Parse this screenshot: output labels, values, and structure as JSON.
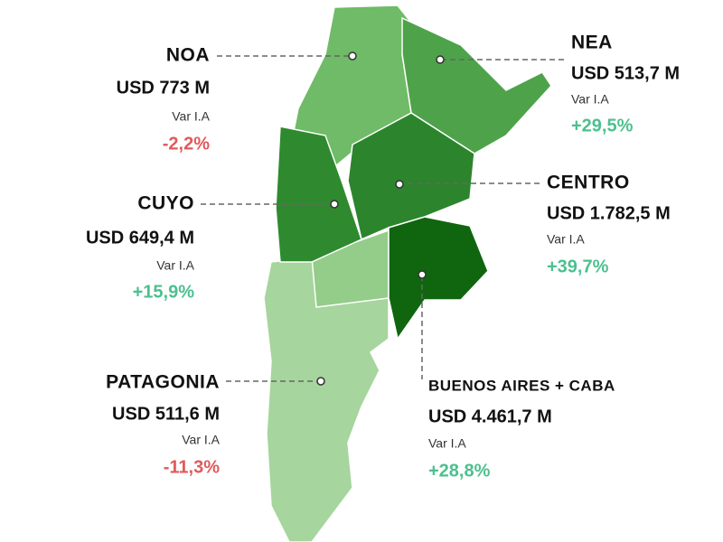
{
  "regions": [
    {
      "name": "NOA",
      "amount": "USD 773 M",
      "var_label": "Var I.A",
      "change": "-2,2%"
    },
    {
      "name": "NEA",
      "amount": "USD 513,7 M",
      "var_label": "Var I.A",
      "change": "+29,5%"
    },
    {
      "name": "CUYO",
      "amount": "USD 649,4 M",
      "var_label": "Var I.A",
      "change": "+15,9%"
    },
    {
      "name": "CENTRO",
      "amount": "USD 1.782,5 M",
      "var_label": "Var I.A",
      "change": "+39,7%"
    },
    {
      "name": "PATAGONIA",
      "amount": "USD 511,6 M",
      "var_label": "Var I.A",
      "change": "-11,3%"
    },
    {
      "name": "BUENOS AIRES + CABA",
      "amount": "USD 4.461,7 M",
      "var_label": "Var I.A",
      "change": "+28,8%"
    }
  ]
}
